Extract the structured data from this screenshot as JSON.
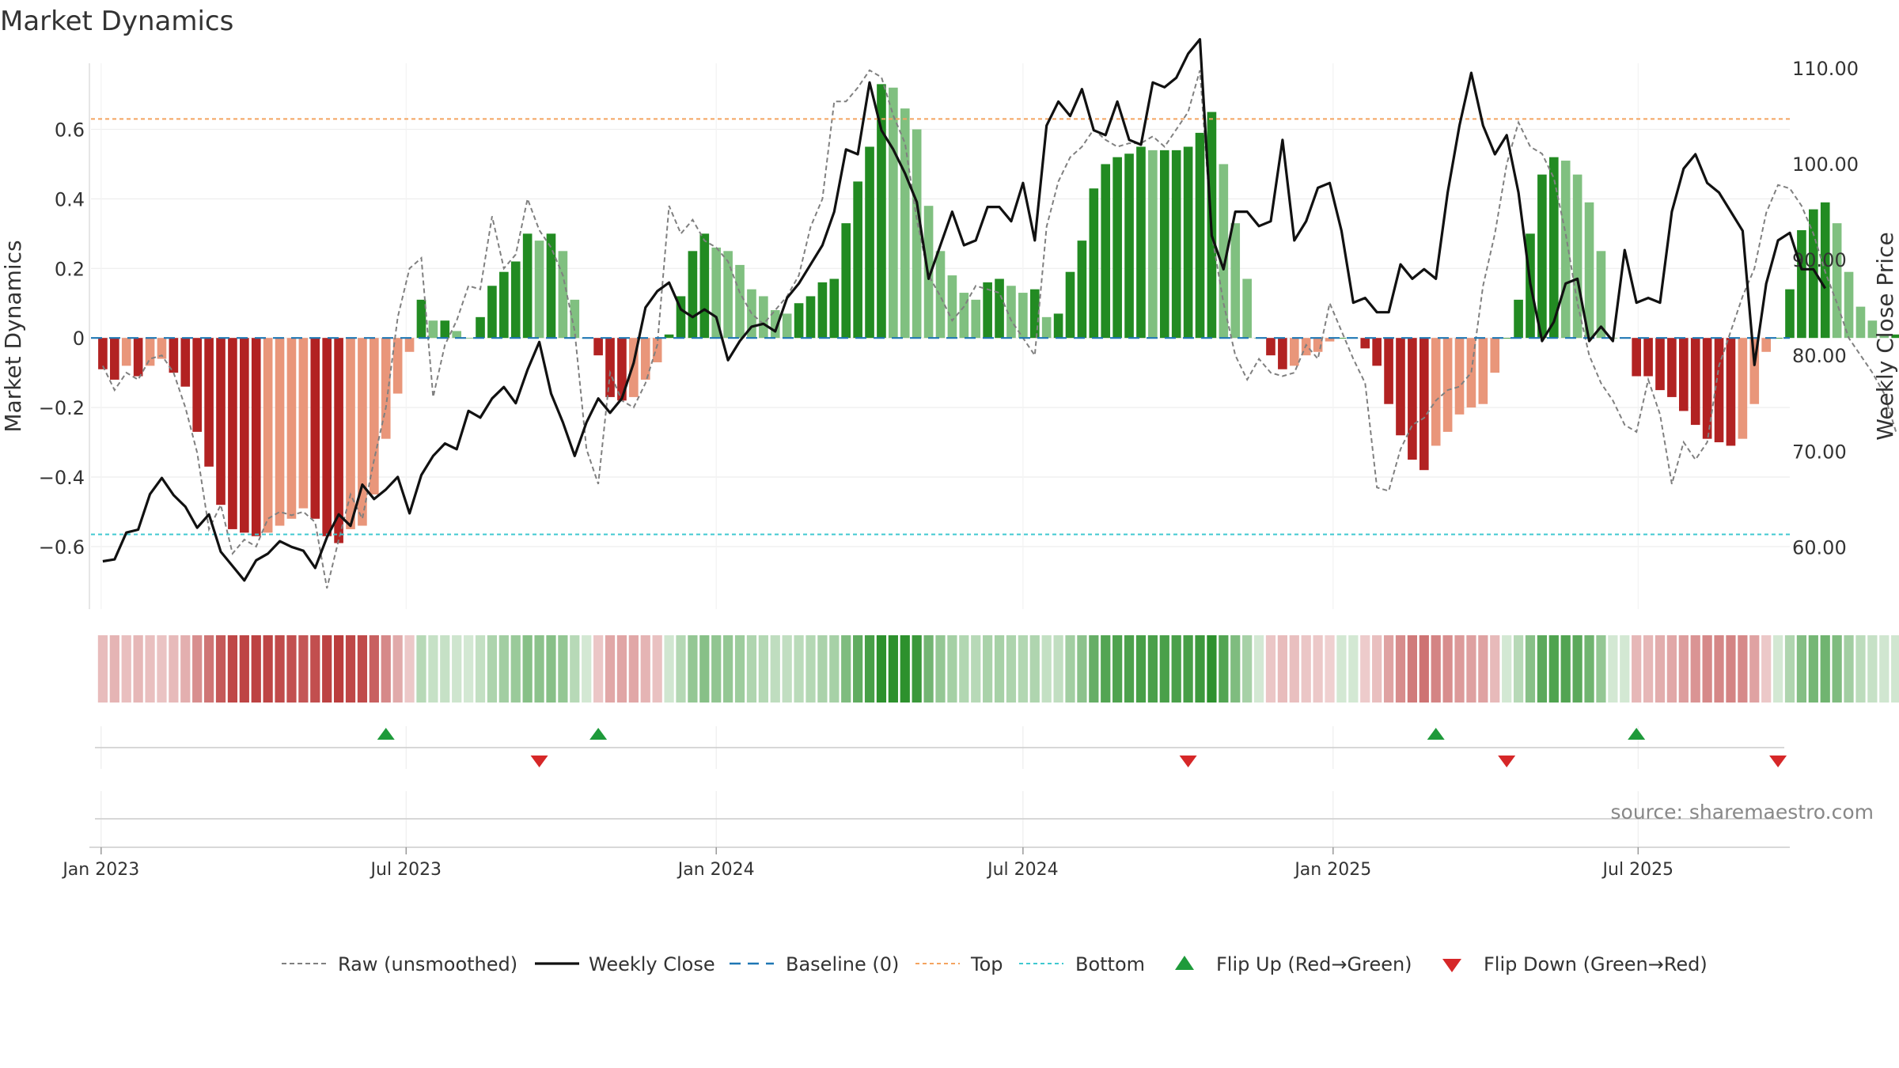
{
  "chart_data": {
    "type": "bar",
    "title": "Market Dynamics",
    "ylabel_left": "Market Dynamics",
    "ylabel_right": "Weekly Close Price",
    "source": "source: sharemaestro.com",
    "x_start": "2023-01-02",
    "x_step_days": 7,
    "xlim": [
      "2022-12-26",
      "2025-09-29"
    ],
    "ylim_left": [
      -0.78,
      0.79
    ],
    "ylim_right": [
      53.5,
      110.5
    ],
    "left_ticks": [
      -0.6,
      -0.4,
      -0.2,
      0,
      0.2,
      0.4,
      0.6
    ],
    "left_tick_labels": [
      "−0.6",
      "−0.4",
      "−0.2",
      "0",
      "0.2",
      "0.4",
      "0.6"
    ],
    "right_ticks": [
      60,
      70,
      80,
      90,
      100,
      110
    ],
    "right_tick_labels": [
      "60.00",
      "70.00",
      "80.00",
      "90.00",
      "100.00",
      "110.00"
    ],
    "x_ticks": [
      {
        "date": "2023-01-01",
        "label": "Jan 2023"
      },
      {
        "date": "2023-07-01",
        "label": "Jul 2023"
      },
      {
        "date": "2024-01-01",
        "label": "Jan 2024"
      },
      {
        "date": "2024-07-01",
        "label": "Jul 2024"
      },
      {
        "date": "2025-01-01",
        "label": "Jan 2025"
      },
      {
        "date": "2025-07-01",
        "label": "Jul 2025"
      }
    ],
    "top_threshold": 0.63,
    "bottom_threshold": -0.565,
    "baseline": 0,
    "grid": true,
    "legend_position": "bottom",
    "series": [
      {
        "name": "Market Dynamics",
        "values": [
          -0.09,
          -0.12,
          -0.08,
          -0.11,
          -0.08,
          -0.06,
          -0.1,
          -0.14,
          -0.27,
          -0.37,
          -0.48,
          -0.55,
          -0.56,
          -0.57,
          -0.56,
          -0.54,
          -0.52,
          -0.49,
          -0.52,
          -0.57,
          -0.59,
          -0.55,
          -0.54,
          -0.45,
          -0.29,
          -0.16,
          -0.04,
          0.11,
          0.05,
          0.05,
          0.02,
          0,
          0.06,
          0.15,
          0.19,
          0.22,
          0.3,
          0.28,
          0.3,
          0.25,
          0.11,
          0,
          -0.05,
          -0.17,
          -0.18,
          -0.17,
          -0.12,
          -0.07,
          0.01,
          0.12,
          0.25,
          0.3,
          0.26,
          0.25,
          0.21,
          0.14,
          0.12,
          0.08,
          0.07,
          0.1,
          0.12,
          0.16,
          0.17,
          0.33,
          0.45,
          0.55,
          0.73,
          0.72,
          0.66,
          0.6,
          0.38,
          0.25,
          0.18,
          0.13,
          0.11,
          0.16,
          0.17,
          0.15,
          0.13,
          0.14,
          0.06,
          0.07,
          0.19,
          0.28,
          0.43,
          0.5,
          0.52,
          0.53,
          0.55,
          0.54,
          0.54,
          0.54,
          0.55,
          0.59,
          0.65,
          0.5,
          0.33,
          0.17,
          0,
          -0.05,
          -0.09,
          -0.08,
          -0.05,
          -0.04,
          -0.01,
          0,
          0,
          -0.03,
          -0.08,
          -0.19,
          -0.28,
          -0.35,
          -0.38,
          -0.31,
          -0.27,
          -0.22,
          -0.2,
          -0.19,
          -0.1,
          0,
          0.11,
          0.3,
          0.47,
          0.52,
          0.51,
          0.47,
          0.39,
          0.25,
          0,
          0,
          -0.11,
          -0.11,
          -0.15,
          -0.17,
          -0.21,
          -0.25,
          -0.29,
          -0.3,
          -0.31,
          -0.29,
          -0.19,
          -0.04,
          0,
          0.14,
          0.31,
          0.37,
          0.39,
          0.33,
          0.19,
          0.09,
          0.05,
          0.01,
          0.01,
          -0.02,
          -0.14
        ]
      },
      {
        "name": "Raw (unsmoothed)",
        "values": [
          -0.08,
          -0.15,
          -0.1,
          -0.12,
          -0.06,
          -0.05,
          -0.1,
          -0.2,
          -0.33,
          -0.55,
          -0.48,
          -0.62,
          -0.58,
          -0.6,
          -0.52,
          -0.5,
          -0.51,
          -0.5,
          -0.53,
          -0.72,
          -0.58,
          -0.45,
          -0.52,
          -0.35,
          -0.2,
          0.06,
          0.2,
          0.23,
          -0.17,
          -0.02,
          0.05,
          0.15,
          0.14,
          0.35,
          0.2,
          0.24,
          0.4,
          0.31,
          0.26,
          0.18,
          0.02,
          -0.32,
          -0.42,
          -0.1,
          -0.18,
          -0.2,
          -0.13,
          -0.02,
          0.38,
          0.3,
          0.34,
          0.28,
          0.26,
          0.22,
          0.13,
          0.07,
          0.04,
          0.08,
          0.12,
          0.18,
          0.32,
          0.4,
          0.68,
          0.68,
          0.72,
          0.77,
          0.75,
          0.64,
          0.56,
          0.34,
          0.18,
          0.12,
          0.05,
          0.09,
          0.15,
          0.14,
          0.13,
          0.05,
          0,
          -0.05,
          0.32,
          0.45,
          0.52,
          0.55,
          0.6,
          0.57,
          0.55,
          0.56,
          0.56,
          0.58,
          0.55,
          0.6,
          0.65,
          0.77,
          0.3,
          0.1,
          -0.05,
          -0.12,
          -0.06,
          -0.1,
          -0.11,
          -0.1,
          -0.02,
          -0.06,
          0.1,
          0.02,
          -0.06,
          -0.13,
          -0.43,
          -0.44,
          -0.32,
          -0.25,
          -0.23,
          -0.18,
          -0.15,
          -0.14,
          -0.1,
          0.15,
          0.3,
          0.5,
          0.62,
          0.55,
          0.53,
          0.46,
          0.3,
          0.1,
          -0.05,
          -0.13,
          -0.18,
          -0.25,
          -0.27,
          -0.12,
          -0.22,
          -0.42,
          -0.3,
          -0.35,
          -0.3,
          -0.08,
          0.02,
          0.12,
          0.2,
          0.36,
          0.44,
          0.43,
          0.38,
          0.3,
          0.19,
          0.1,
          0,
          -0.05,
          -0.1,
          -0.16,
          -0.27
        ]
      },
      {
        "name": "Weekly Close",
        "values": [
          58.5,
          58.7,
          61.5,
          61.8,
          65.5,
          67.2,
          65.4,
          64.2,
          62,
          63.4,
          59.5,
          58,
          56.5,
          58.6,
          59.3,
          60.6,
          60,
          59.6,
          57.8,
          61,
          63.4,
          62.2,
          66.5,
          65,
          66,
          67.3,
          63.5,
          67.5,
          69.5,
          70.8,
          70.2,
          74.2,
          73.5,
          75.5,
          76.7,
          75,
          78.5,
          81.4,
          76,
          73,
          69.5,
          73,
          75.5,
          74,
          75.5,
          79.2,
          85,
          86.7,
          87.6,
          84.8,
          84,
          84.8,
          84,
          79.5,
          81.5,
          83,
          83.3,
          82.5,
          86,
          87.5,
          89.5,
          91.5,
          95,
          101.5,
          101,
          108.5,
          103.5,
          101.5,
          99,
          96,
          88,
          91.5,
          95,
          91.5,
          92,
          95.5,
          95.5,
          94,
          98,
          92,
          104,
          106.5,
          105,
          107.8,
          103.5,
          103,
          106.5,
          102.5,
          102,
          108.5,
          108,
          109,
          111.5,
          113,
          92.5,
          89,
          95,
          95,
          93.5,
          94,
          102.5,
          92,
          94,
          97.5,
          98,
          93,
          85.5,
          86,
          84.5,
          84.5,
          89.5,
          88,
          89,
          88,
          97,
          104,
          109.5,
          104,
          101,
          103,
          97,
          87.5,
          81.5,
          83.5,
          87.5,
          88,
          81.5,
          83,
          81.5,
          91,
          85.5,
          86,
          85.5,
          95,
          99.5,
          101,
          98,
          97,
          95,
          93,
          79,
          87.5,
          92,
          92.8,
          89,
          89,
          87
        ]
      }
    ],
    "flip_up_dates": [
      "2023-06-19",
      "2023-10-23",
      "2025-03-03",
      "2025-06-30"
    ],
    "flip_down_dates": [
      "2023-09-18",
      "2024-10-07",
      "2025-04-14",
      "2025-09-22"
    ],
    "legend": [
      "Raw (unsmoothed)",
      "Weekly Close",
      "Baseline (0)",
      "Top",
      "Bottom",
      "Flip Up (Red→Green)",
      "Flip Down (Green→Red)"
    ],
    "colors": {
      "strong_green": "#228b22",
      "light_green": "#80c080",
      "strong_red": "#b22222",
      "light_red": "#e9967a",
      "raw_line": "#808080",
      "close_line": "#111111",
      "baseline": "#1f77b4",
      "top": "#f4a460",
      "bottom": "#40c8d0",
      "flip_up": "#1e9a3a",
      "flip_down": "#d62728"
    }
  }
}
